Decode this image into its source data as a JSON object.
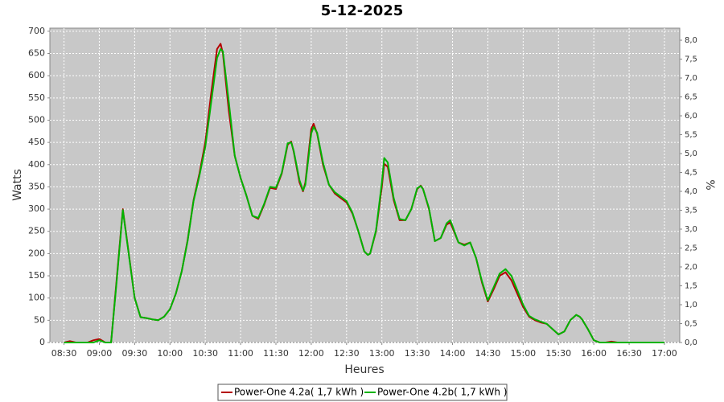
{
  "chart_data": {
    "type": "line",
    "title": "5-12-2025",
    "x_label": "Heures",
    "y_label": "Watts",
    "y2_label": "%",
    "x": [
      510,
      515,
      520,
      530,
      535,
      540,
      545,
      550,
      555,
      560,
      565,
      570,
      575,
      580,
      585,
      590,
      595,
      600,
      605,
      610,
      615,
      620,
      625,
      630,
      635,
      640,
      643,
      645,
      650,
      655,
      660,
      665,
      670,
      675,
      680,
      685,
      690,
      695,
      700,
      703,
      705,
      710,
      713,
      715,
      720,
      722,
      725,
      730,
      735,
      740,
      745,
      750,
      755,
      760,
      765,
      768,
      770,
      775,
      780,
      782,
      785,
      790,
      795,
      800,
      805,
      810,
      813,
      815,
      820,
      825,
      830,
      835,
      838,
      840,
      845,
      850,
      855,
      860,
      865,
      870,
      875,
      880,
      885,
      890,
      895,
      900,
      905,
      910,
      915,
      920,
      925,
      930,
      935,
      938,
      940,
      945,
      948,
      950,
      955,
      960,
      965,
      970,
      975,
      980,
      990,
      1005,
      1020
    ],
    "series": [
      {
        "name": "Power-One 4.2a( 1,7 kWh )",
        "color": "#b40000",
        "values": [
          0,
          3,
          0,
          0,
          5,
          8,
          0,
          0,
          150,
          300,
          200,
          100,
          57,
          55,
          52,
          50,
          58,
          75,
          110,
          160,
          230,
          320,
          380,
          450,
          560,
          660,
          672,
          650,
          520,
          420,
          370,
          330,
          285,
          278,
          310,
          348,
          345,
          380,
          445,
          452,
          430,
          360,
          340,
          360,
          480,
          492,
          470,
          400,
          355,
          335,
          325,
          315,
          290,
          250,
          205,
          197,
          200,
          250,
          350,
          402,
          395,
          320,
          275,
          275,
          300,
          345,
          353,
          345,
          300,
          228,
          235,
          265,
          270,
          258,
          225,
          220,
          225,
          190,
          135,
          92,
          120,
          150,
          158,
          140,
          110,
          80,
          58,
          50,
          45,
          42,
          30,
          18,
          25,
          40,
          50,
          62,
          58,
          52,
          30,
          5,
          0,
          0,
          2,
          0,
          0,
          0,
          0
        ]
      },
      {
        "name": "Power-One 4.2b( 1,7 kWh )",
        "color": "#00b400",
        "values": [
          0,
          0,
          0,
          0,
          0,
          5,
          0,
          0,
          145,
          298,
          198,
          100,
          57,
          55,
          52,
          50,
          58,
          75,
          110,
          160,
          228,
          318,
          375,
          440,
          540,
          640,
          660,
          655,
          540,
          420,
          370,
          330,
          285,
          280,
          312,
          350,
          348,
          382,
          448,
          450,
          432,
          365,
          342,
          355,
          470,
          485,
          472,
          405,
          355,
          338,
          328,
          318,
          292,
          250,
          205,
          197,
          200,
          252,
          360,
          415,
          405,
          325,
          278,
          275,
          300,
          347,
          352,
          345,
          302,
          228,
          235,
          268,
          275,
          262,
          225,
          218,
          225,
          190,
          138,
          95,
          125,
          155,
          165,
          150,
          118,
          85,
          60,
          52,
          47,
          42,
          30,
          18,
          25,
          40,
          50,
          62,
          58,
          52,
          30,
          5,
          0,
          0,
          0,
          0,
          0,
          0,
          0
        ]
      }
    ],
    "xlim": [
      498,
      1033
    ],
    "xticks": [
      {
        "value": 510,
        "label": "08:30"
      },
      {
        "value": 540,
        "label": "09:00"
      },
      {
        "value": 570,
        "label": "09:30"
      },
      {
        "value": 600,
        "label": "10:00"
      },
      {
        "value": 630,
        "label": "10:30"
      },
      {
        "value": 660,
        "label": "11:00"
      },
      {
        "value": 690,
        "label": "11:30"
      },
      {
        "value": 720,
        "label": "12:00"
      },
      {
        "value": 750,
        "label": "12:30"
      },
      {
        "value": 780,
        "label": "13:00"
      },
      {
        "value": 810,
        "label": "13:30"
      },
      {
        "value": 840,
        "label": "14:00"
      },
      {
        "value": 870,
        "label": "14:30"
      },
      {
        "value": 900,
        "label": "15:00"
      },
      {
        "value": 930,
        "label": "15:30"
      },
      {
        "value": 960,
        "label": "16:00"
      },
      {
        "value": 990,
        "label": "16:30"
      },
      {
        "value": 1020,
        "label": "17:00"
      }
    ],
    "ylim": [
      0,
      707
    ],
    "yticks": [
      0,
      50,
      100,
      150,
      200,
      250,
      300,
      350,
      400,
      450,
      500,
      550,
      600,
      650,
      700
    ],
    "y2lim": [
      0,
      8.32
    ],
    "y2ticks": [
      {
        "value": 0,
        "label": "0,0"
      },
      {
        "value": 0.5,
        "label": "0,5"
      },
      {
        "value": 1,
        "label": "1,0"
      },
      {
        "value": 1.5,
        "label": "1,5"
      },
      {
        "value": 2,
        "label": "2,0"
      },
      {
        "value": 2.5,
        "label": "2,5"
      },
      {
        "value": 3,
        "label": "3,0"
      },
      {
        "value": 3.5,
        "label": "3,5"
      },
      {
        "value": 4,
        "label": "4,0"
      },
      {
        "value": 4.5,
        "label": "4,5"
      },
      {
        "value": 5,
        "label": "5,0"
      },
      {
        "value": 5.5,
        "label": "5,5"
      },
      {
        "value": 6,
        "label": "6,0"
      },
      {
        "value": 6.5,
        "label": "6,5"
      },
      {
        "value": 7,
        "label": "7,0"
      },
      {
        "value": 7.5,
        "label": "7,5"
      },
      {
        "value": 8,
        "label": "8,0"
      }
    ],
    "grid": true,
    "legend": "bottom"
  }
}
